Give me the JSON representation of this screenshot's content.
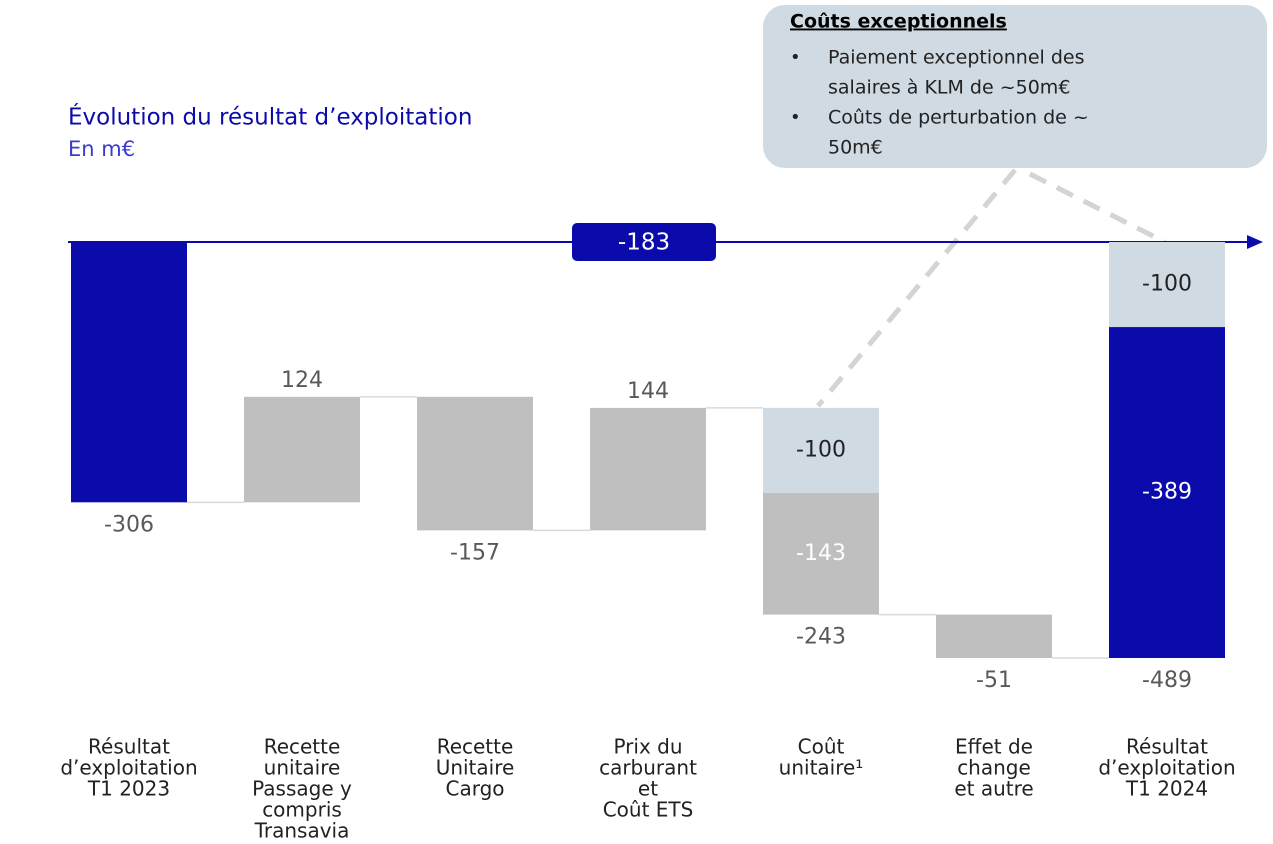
{
  "chart_data": {
    "type": "waterfall",
    "title": "Évolution du résultat d’exploitation",
    "subtitle": "En m€",
    "categories": [
      [
        "Résultat",
        "d’exploitation",
        "T1 2023"
      ],
      [
        "Recette",
        "unitaire",
        "Passage y",
        "compris",
        "Transavia"
      ],
      [
        "Recette",
        "Unitaire",
        "Cargo"
      ],
      [
        "Prix du",
        "carburant",
        "et",
        "Coût ETS"
      ],
      [
        "Coût",
        "unitaire¹"
      ],
      [
        "Effet de",
        "change",
        "et autre"
      ],
      [
        "Résultat",
        "d’exploitation",
        "T1 2024"
      ]
    ],
    "bars": [
      {
        "value": -306,
        "total": true,
        "color": "#0b0bab"
      },
      {
        "value": 124,
        "color": "#bfbfbf"
      },
      {
        "value": -157,
        "color": "#bfbfbf"
      },
      {
        "value": 144,
        "color": "#bfbfbf"
      },
      {
        "value": -243,
        "segments": [
          {
            "value": -100,
            "color": "#d0dae3"
          },
          {
            "value": -143,
            "color": "#bfbfbf"
          }
        ]
      },
      {
        "value": -51,
        "color": "#bfbfbf"
      },
      {
        "value": -489,
        "total": true,
        "segments": [
          {
            "value": -100,
            "color": "#d0dae3"
          },
          {
            "value": -389,
            "color": "#0b0bab"
          }
        ]
      }
    ],
    "change": -183,
    "callout": {
      "title": "Coûts exceptionnels",
      "bullets": [
        [
          "Paiement exceptionnel des",
          "salaires à KLM de ~50m€"
        ],
        [
          "Coûts de perturbation de ~",
          "50m€"
        ]
      ]
    }
  }
}
